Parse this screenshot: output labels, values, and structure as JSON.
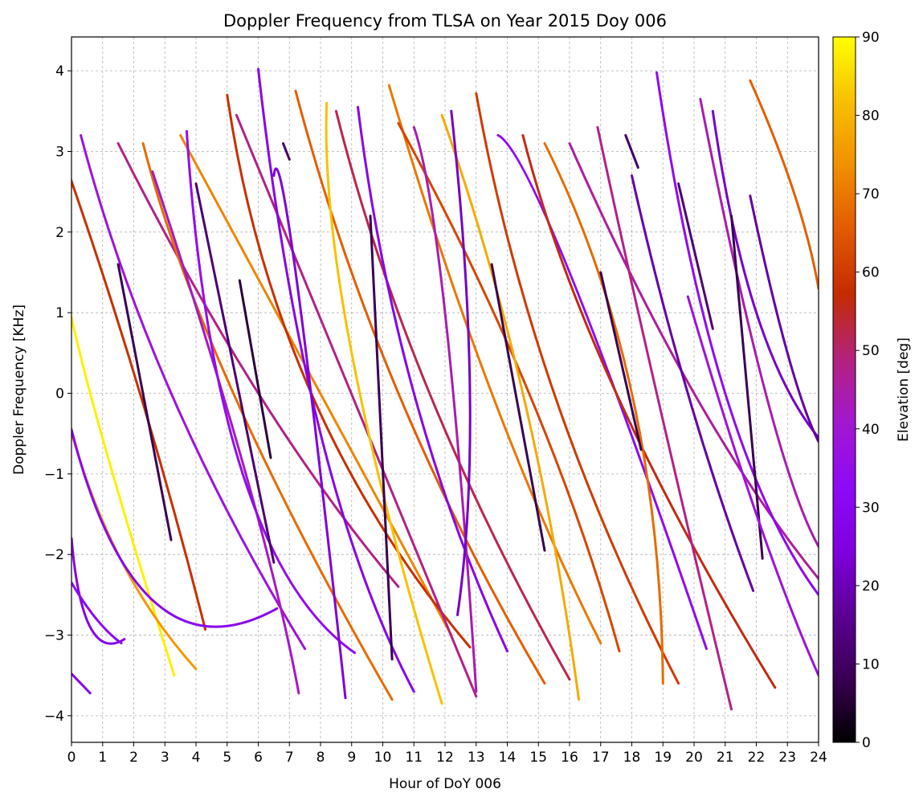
{
  "chart_data": {
    "type": "scatter",
    "title": "Doppler Frequency from TLSA on Year 2015 Doy 006",
    "xlabel": "Hour of DoY 006",
    "ylabel": "Doppler Frequency [KHz]",
    "xlim": [
      0,
      24
    ],
    "ylim": [
      -4.33,
      4.42
    ],
    "x_ticks": [
      0,
      1,
      2,
      3,
      4,
      5,
      6,
      7,
      8,
      9,
      10,
      11,
      12,
      13,
      14,
      15,
      16,
      17,
      18,
      19,
      20,
      21,
      22,
      23,
      24
    ],
    "x_tick_labels": [
      "0",
      "1",
      "2",
      "3",
      "4",
      "5",
      "6",
      "7",
      "8",
      "9",
      "10",
      "11",
      "12",
      "13",
      "14",
      "15",
      "16",
      "17",
      "18",
      "19",
      "20",
      "21",
      "22",
      "23",
      "24"
    ],
    "y_ticks": [
      -4,
      -3,
      -2,
      -1,
      0,
      1,
      2,
      3,
      4
    ],
    "y_tick_labels": [
      "−4",
      "−3",
      "−2",
      "−1",
      "0",
      "1",
      "2",
      "3",
      "4"
    ],
    "grid": true,
    "grid_style": "dashed",
    "colorbar": {
      "label": "Elevation [deg]",
      "min": 0,
      "max": 90,
      "ticks": [
        0,
        10,
        20,
        30,
        40,
        50,
        60,
        70,
        80,
        90
      ],
      "tick_labels": [
        "0",
        "10",
        "20",
        "30",
        "40",
        "50",
        "60",
        "70",
        "80",
        "90"
      ],
      "colormap": "gnuplot",
      "colormap_stops": [
        "#000000",
        "#3a0054",
        "#5c0094",
        "#7f00e0",
        "#8e0af5",
        "#a218cf",
        "#b3227b",
        "#c42c00",
        "#e25a00",
        "#f09000",
        "#f7c000",
        "#ffff00"
      ]
    },
    "marker_color_meaning": "satellite elevation (deg)",
    "series": [
      {
        "start": [
          -0.2,
          2.85
        ],
        "mid": [
          2.2,
          0.0
        ],
        "end": [
          4.3,
          -2.93
        ],
        "max_elevation": 58
      },
      {
        "start": [
          -0.3,
          1.7
        ],
        "mid": [
          0.6,
          0.0
        ],
        "end": [
          3.3,
          -3.5
        ],
        "max_elevation": 88
      },
      {
        "start": [
          -0.2,
          -0.2
        ],
        "mid": [
          1.5,
          -2.0
        ],
        "end": [
          4.0,
          -3.42
        ],
        "max_elevation": 75
      },
      {
        "start": [
          0.0,
          -0.45
        ],
        "mid": [
          2.7,
          -2.6
        ],
        "end": [
          6.6,
          -2.67
        ],
        "max_elevation": 30
      },
      {
        "start": [
          0.0,
          -1.8
        ],
        "mid": [
          0.6,
          -2.9
        ],
        "end": [
          1.7,
          -3.05
        ],
        "max_elevation": 27
      },
      {
        "start": [
          0.0,
          -2.35
        ],
        "mid": [
          0.8,
          -2.8
        ],
        "end": [
          1.6,
          -3.1
        ],
        "max_elevation": 32
      },
      {
        "start": [
          0.0,
          -3.48
        ],
        "end": [
          0.6,
          -3.72
        ],
        "max_elevation": 30
      },
      {
        "start": [
          0.3,
          3.2
        ],
        "mid": [
          3.2,
          0.0
        ],
        "end": [
          7.5,
          -3.17
        ],
        "max_elevation": 38
      },
      {
        "start": [
          1.5,
          1.6
        ],
        "end": [
          3.2,
          -1.82
        ],
        "max_elevation": 8
      },
      {
        "start": [
          1.5,
          3.1
        ],
        "mid": [
          6.0,
          0.0
        ],
        "end": [
          10.5,
          -2.4
        ],
        "max_elevation": 48
      },
      {
        "start": [
          2.3,
          3.1
        ],
        "mid": [
          5.2,
          0.0
        ],
        "end": [
          10.3,
          -3.8
        ],
        "max_elevation": 68
      },
      {
        "start": [
          2.6,
          2.75
        ],
        "mid": [
          5.6,
          -1.0
        ],
        "end": [
          7.3,
          -3.72
        ],
        "max_elevation": 42
      },
      {
        "start": [
          3.5,
          3.2
        ],
        "mid": [
          8.0,
          0.0
        ],
        "end": [
          12.2,
          -3.0
        ],
        "max_elevation": 72
      },
      {
        "start": [
          3.7,
          3.25
        ],
        "mid": [
          5.5,
          -1.0
        ],
        "end": [
          9.1,
          -3.22
        ],
        "max_elevation": 34
      },
      {
        "start": [
          4.0,
          2.6
        ],
        "end": [
          6.5,
          -2.1
        ],
        "max_elevation": 12
      },
      {
        "start": [
          5.0,
          3.7
        ],
        "mid": [
          7.7,
          0.0
        ],
        "end": [
          12.8,
          -3.15
        ],
        "max_elevation": 58
      },
      {
        "start": [
          5.3,
          3.45
        ],
        "mid": [
          9.0,
          0.0
        ],
        "end": [
          13.0,
          -3.76
        ],
        "max_elevation": 48
      },
      {
        "start": [
          5.4,
          1.4
        ],
        "end": [
          6.4,
          -0.8
        ],
        "max_elevation": 6
      },
      {
        "start": [
          6.0,
          4.02
        ],
        "mid": [
          8.0,
          -0.5
        ],
        "end": [
          11.0,
          -3.7
        ],
        "max_elevation": 28
      },
      {
        "start": [
          6.5,
          2.7
        ],
        "mid": [
          7.2,
          1.5
        ],
        "end": [
          8.8,
          -3.78
        ],
        "max_elevation": 24
      },
      {
        "start": [
          6.8,
          3.1
        ],
        "end": [
          7.0,
          2.9
        ],
        "max_elevation": 10
      },
      {
        "start": [
          7.2,
          3.75
        ],
        "mid": [
          10.5,
          0.0
        ],
        "end": [
          15.2,
          -3.6
        ],
        "max_elevation": 66
      },
      {
        "start": [
          8.2,
          3.6
        ],
        "mid": [
          9.0,
          0.5
        ],
        "end": [
          11.9,
          -3.85
        ],
        "max_elevation": 82
      },
      {
        "start": [
          8.5,
          3.5
        ],
        "mid": [
          11.5,
          0.0
        ],
        "end": [
          16.0,
          -3.55
        ],
        "max_elevation": 52
      },
      {
        "start": [
          9.2,
          3.55
        ],
        "mid": [
          11.0,
          0.0
        ],
        "end": [
          14.0,
          -3.2
        ],
        "max_elevation": 28
      },
      {
        "start": [
          9.6,
          2.2
        ],
        "end": [
          10.3,
          -3.3
        ],
        "max_elevation": 8
      },
      {
        "start": [
          10.2,
          3.82
        ],
        "mid": [
          13.5,
          0.0
        ],
        "end": [
          17.0,
          -3.1
        ],
        "max_elevation": 70
      },
      {
        "start": [
          10.5,
          3.35
        ],
        "mid": [
          14.7,
          0.0
        ],
        "end": [
          17.6,
          -3.2
        ],
        "max_elevation": 62
      },
      {
        "start": [
          11.0,
          3.3
        ],
        "mid": [
          12.0,
          1.0
        ],
        "end": [
          13.0,
          -3.7
        ],
        "max_elevation": 44
      },
      {
        "start": [
          11.9,
          3.45
        ],
        "mid": [
          14.5,
          0.0
        ],
        "end": [
          16.3,
          -3.8
        ],
        "max_elevation": 78
      },
      {
        "start": [
          12.2,
          3.5
        ],
        "mid": [
          12.8,
          0.0
        ],
        "end": [
          12.4,
          -2.75
        ],
        "max_elevation": 22
      },
      {
        "start": [
          13.0,
          3.72
        ],
        "mid": [
          15.5,
          0.0
        ],
        "end": [
          19.5,
          -3.6
        ],
        "max_elevation": 60
      },
      {
        "start": [
          13.5,
          1.6
        ],
        "end": [
          15.2,
          -1.95
        ],
        "max_elevation": 8
      },
      {
        "start": [
          13.7,
          3.2
        ],
        "mid": [
          16.0,
          1.5
        ],
        "end": [
          20.4,
          -3.17
        ],
        "max_elevation": 32
      },
      {
        "start": [
          14.5,
          3.2
        ],
        "mid": [
          17.5,
          0.0
        ],
        "end": [
          22.6,
          -3.65
        ],
        "max_elevation": 56
      },
      {
        "start": [
          15.2,
          3.1
        ],
        "mid": [
          18.0,
          0.0
        ],
        "end": [
          19.0,
          -3.6
        ],
        "max_elevation": 68
      },
      {
        "start": [
          16.0,
          3.1
        ],
        "mid": [
          20.0,
          0.0
        ],
        "end": [
          24.0,
          -2.3
        ],
        "max_elevation": 46
      },
      {
        "start": [
          16.9,
          3.3
        ],
        "mid": [
          18.8,
          0.0
        ],
        "end": [
          21.2,
          -3.92
        ],
        "max_elevation": 48
      },
      {
        "start": [
          17.0,
          1.5
        ],
        "end": [
          18.3,
          -0.7
        ],
        "max_elevation": 8
      },
      {
        "start": [
          17.8,
          3.2
        ],
        "end": [
          18.2,
          2.8
        ],
        "max_elevation": 10
      },
      {
        "start": [
          18.0,
          2.7
        ],
        "mid": [
          19.8,
          0.0
        ],
        "end": [
          21.9,
          -2.45
        ],
        "max_elevation": 18
      },
      {
        "start": [
          18.8,
          3.98
        ],
        "mid": [
          21.0,
          0.0
        ],
        "end": [
          24.0,
          -2.5
        ],
        "max_elevation": 32
      },
      {
        "start": [
          19.5,
          2.6
        ],
        "end": [
          20.6,
          0.8
        ],
        "max_elevation": 12
      },
      {
        "start": [
          20.2,
          3.65
        ],
        "mid": [
          22.3,
          0.0
        ],
        "end": [
          24.0,
          -1.9
        ],
        "max_elevation": 44
      },
      {
        "start": [
          20.6,
          3.5
        ],
        "mid": [
          22.0,
          1.0
        ],
        "end": [
          24.0,
          -0.55
        ],
        "max_elevation": 22
      },
      {
        "start": [
          21.2,
          2.2
        ],
        "end": [
          22.2,
          -2.05
        ],
        "max_elevation": 8
      },
      {
        "start": [
          21.8,
          3.88
        ],
        "mid": [
          23.2,
          2.5
        ],
        "end": [
          24.0,
          1.3
        ],
        "max_elevation": 66
      },
      {
        "start": [
          21.8,
          2.45
        ],
        "mid": [
          23.0,
          0.5
        ],
        "end": [
          24.0,
          -0.6
        ],
        "max_elevation": 18
      },
      {
        "start": [
          19.8,
          1.2
        ],
        "mid": [
          22.0,
          -1.5
        ],
        "end": [
          24.0,
          -3.5
        ],
        "max_elevation": 38
      }
    ]
  }
}
